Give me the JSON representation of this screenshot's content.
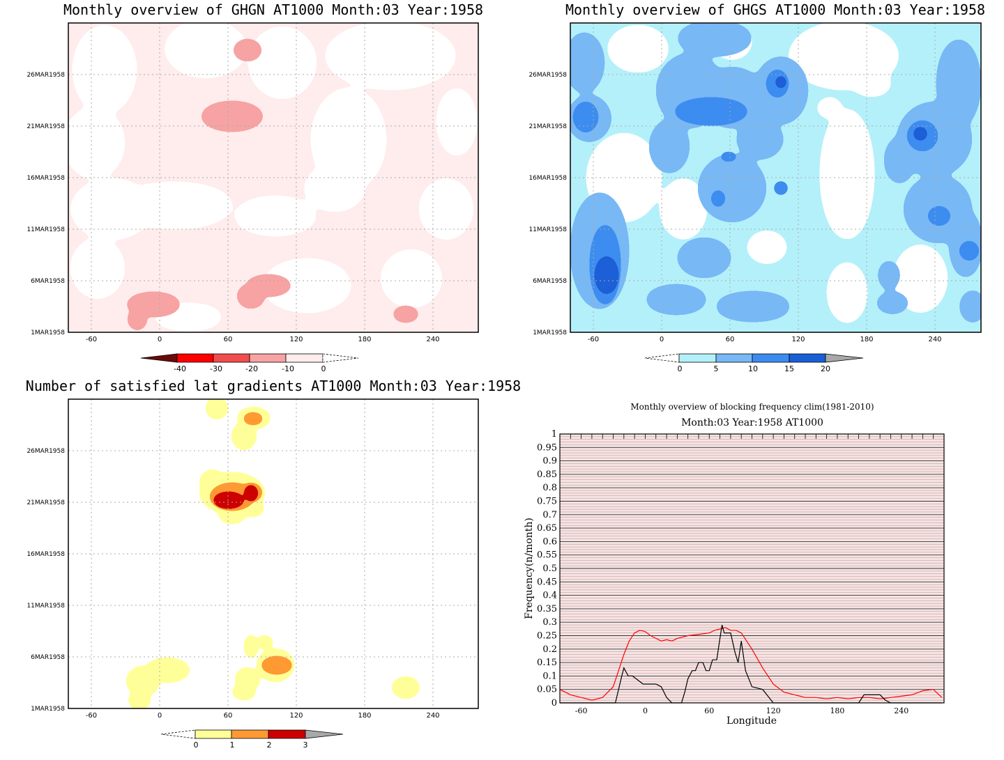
{
  "chart_data": [
    {
      "type": "heatmap",
      "title": "Monthly overview of GHGN AT1000 Month:03 Year:1958",
      "x_ticks": [
        -60,
        0,
        60,
        120,
        180,
        240
      ],
      "xlim": [
        -80,
        280
      ],
      "y_ticks": [
        "1MAR1958",
        "6MAR1958",
        "11MAR1958",
        "16MAR1958",
        "21MAR1958",
        "26MAR1958"
      ],
      "ylim_days": [
        1,
        31
      ],
      "colorbar": {
        "labels": [
          "-40",
          "-30",
          "-20",
          "-10",
          "0"
        ],
        "colors": [
          "#6b0a0a",
          "#ff0000",
          "#f24d4d",
          "#f7a3a3",
          "#ffecec"
        ]
      },
      "grid": true
    },
    {
      "type": "heatmap",
      "title": "Monthly overview of GHGS AT1000 Month:03 Year:1958",
      "x_ticks": [
        -60,
        0,
        60,
        120,
        180,
        240
      ],
      "xlim": [
        -80,
        280
      ],
      "y_ticks": [
        "1MAR1958",
        "6MAR1958",
        "11MAR1958",
        "16MAR1958",
        "21MAR1958",
        "26MAR1958"
      ],
      "ylim_days": [
        1,
        31
      ],
      "colorbar": {
        "labels": [
          "0",
          "5",
          "10",
          "15",
          "20"
        ],
        "colors": [
          "#b4f0fa",
          "#78b8f5",
          "#3c8cf0",
          "#1a5fd6",
          "#a8a8a8"
        ]
      },
      "grid": true
    },
    {
      "type": "heatmap",
      "title": "Number of satisfied lat gradients AT1000 Month:03 Year:1958",
      "x_ticks": [
        -60,
        0,
        60,
        120,
        180,
        240
      ],
      "xlim": [
        -80,
        280
      ],
      "y_ticks": [
        "1MAR1958",
        "6MAR1958",
        "11MAR1958",
        "16MAR1958",
        "21MAR1958",
        "26MAR1958"
      ],
      "ylim_days": [
        1,
        31
      ],
      "colorbar": {
        "labels": [
          "0",
          "1",
          "2",
          "3"
        ],
        "colors": [
          "#ffff99",
          "#ff9933",
          "#cc0000",
          "#a8a8a8"
        ]
      },
      "grid": true
    },
    {
      "type": "line",
      "title": "Monthly overview of blocking frequency clim(1981-2010)",
      "subtitle": "Month:03 Year:1958  AT1000",
      "xlabel": "Longitude",
      "ylabel": "Frequency(n/month)",
      "xlim": [
        -80,
        280
      ],
      "ylim": [
        0,
        1
      ],
      "x_ticks": [
        -60,
        0,
        60,
        120,
        180,
        240
      ],
      "y_ticks": [
        "0",
        "0.05",
        "0.1",
        "0.15",
        "0.2",
        "0.25",
        "0.3",
        "0.35",
        "0.4",
        "0.45",
        "0.5",
        "0.55",
        "0.6",
        "0.65",
        "0.7",
        "0.75",
        "0.8",
        "0.85",
        "0.9",
        "0.95",
        "1"
      ],
      "series": [
        {
          "color": "#ff0000",
          "x": [
            -80,
            -70,
            -60,
            -50,
            -40,
            -30,
            -25,
            -20,
            -15,
            -10,
            -5,
            0,
            5,
            10,
            15,
            20,
            25,
            30,
            40,
            50,
            60,
            65,
            70,
            75,
            80,
            85,
            90,
            100,
            110,
            120,
            130,
            140,
            150,
            160,
            170,
            180,
            190,
            200,
            210,
            220,
            230,
            240,
            250,
            260,
            270,
            278
          ],
          "y": [
            0.05,
            0.03,
            0.02,
            0.01,
            0.02,
            0.06,
            0.12,
            0.18,
            0.23,
            0.26,
            0.27,
            0.265,
            0.25,
            0.24,
            0.23,
            0.235,
            0.23,
            0.24,
            0.25,
            0.255,
            0.26,
            0.27,
            0.275,
            0.28,
            0.27,
            0.27,
            0.26,
            0.2,
            0.13,
            0.07,
            0.04,
            0.03,
            0.02,
            0.02,
            0.015,
            0.02,
            0.015,
            0.02,
            0.02,
            0.015,
            0.02,
            0.025,
            0.03,
            0.045,
            0.05,
            0.02
          ]
        },
        {
          "color": "#000000",
          "x": [
            -80,
            -28,
            -22,
            -20,
            -16,
            -12,
            -2,
            4,
            10,
            15,
            20,
            25,
            34,
            37,
            40,
            44,
            47,
            50,
            54,
            57,
            60,
            63,
            67,
            70,
            72,
            74,
            80,
            84,
            87,
            90,
            94,
            100,
            110,
            118,
            120,
            200,
            205,
            210,
            220,
            225,
            230,
            278
          ],
          "y": [
            0,
            0,
            0.1,
            0.13,
            0.1,
            0.1,
            0.07,
            0.07,
            0.07,
            0.06,
            0.02,
            0,
            0,
            0.04,
            0.09,
            0.12,
            0.12,
            0.15,
            0.15,
            0.12,
            0.12,
            0.16,
            0.16,
            0.24,
            0.29,
            0.26,
            0.26,
            0.19,
            0.15,
            0.23,
            0.12,
            0.06,
            0.05,
            0.01,
            0,
            0,
            0.03,
            0.03,
            0.03,
            0.01,
            0,
            0
          ]
        }
      ],
      "grid": true
    }
  ]
}
